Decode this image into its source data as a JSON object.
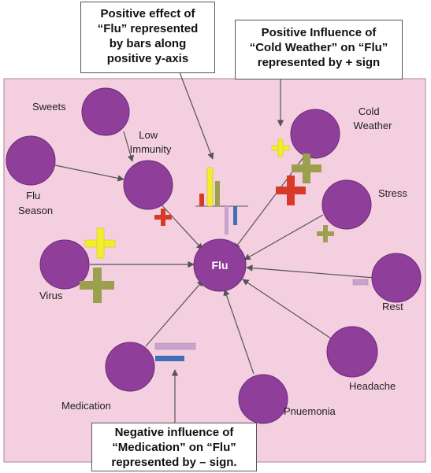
{
  "colors": {
    "panel_bg": "#f4cfe0",
    "panel_border": "#c9a4b6",
    "node_fill": "#8f3e9a",
    "node_stroke": "#6b2a78",
    "arrow": "#555555",
    "plus_yellow": "#f2ee2a",
    "plus_olive": "#9aa04e",
    "plus_red": "#d83a2a",
    "minus_lavender": "#c7a3cc",
    "minus_blue": "#3f6fb5"
  },
  "nodes": {
    "flu": "Flu",
    "sweets": "Sweets",
    "low_immunity": [
      "Low",
      "Immunity"
    ],
    "flu_season": [
      "Flu",
      "Season"
    ],
    "cold_weather": [
      "Cold",
      "Weather"
    ],
    "stress": "Stress",
    "rest": "Rest",
    "virus": "Virus",
    "headache": "Headache",
    "pnuemonia": "Pnuemonia",
    "medication": "Medication"
  },
  "callouts": {
    "bars": [
      "Positive effect of",
      "“Flu” represented",
      "by bars along",
      "positive y-axis"
    ],
    "cold_weather": [
      "Positive Influence of",
      "“Cold Weather” on “Flu”",
      "represented by + sign"
    ],
    "medication": [
      "Negative influence of",
      "“Medication” on “Flu”",
      "represented by – sign."
    ]
  },
  "icons": {
    "plus": "plus-sign-icon",
    "minus": "minus-sign-icon",
    "bar_chart": "mini-bar-chart-icon"
  }
}
